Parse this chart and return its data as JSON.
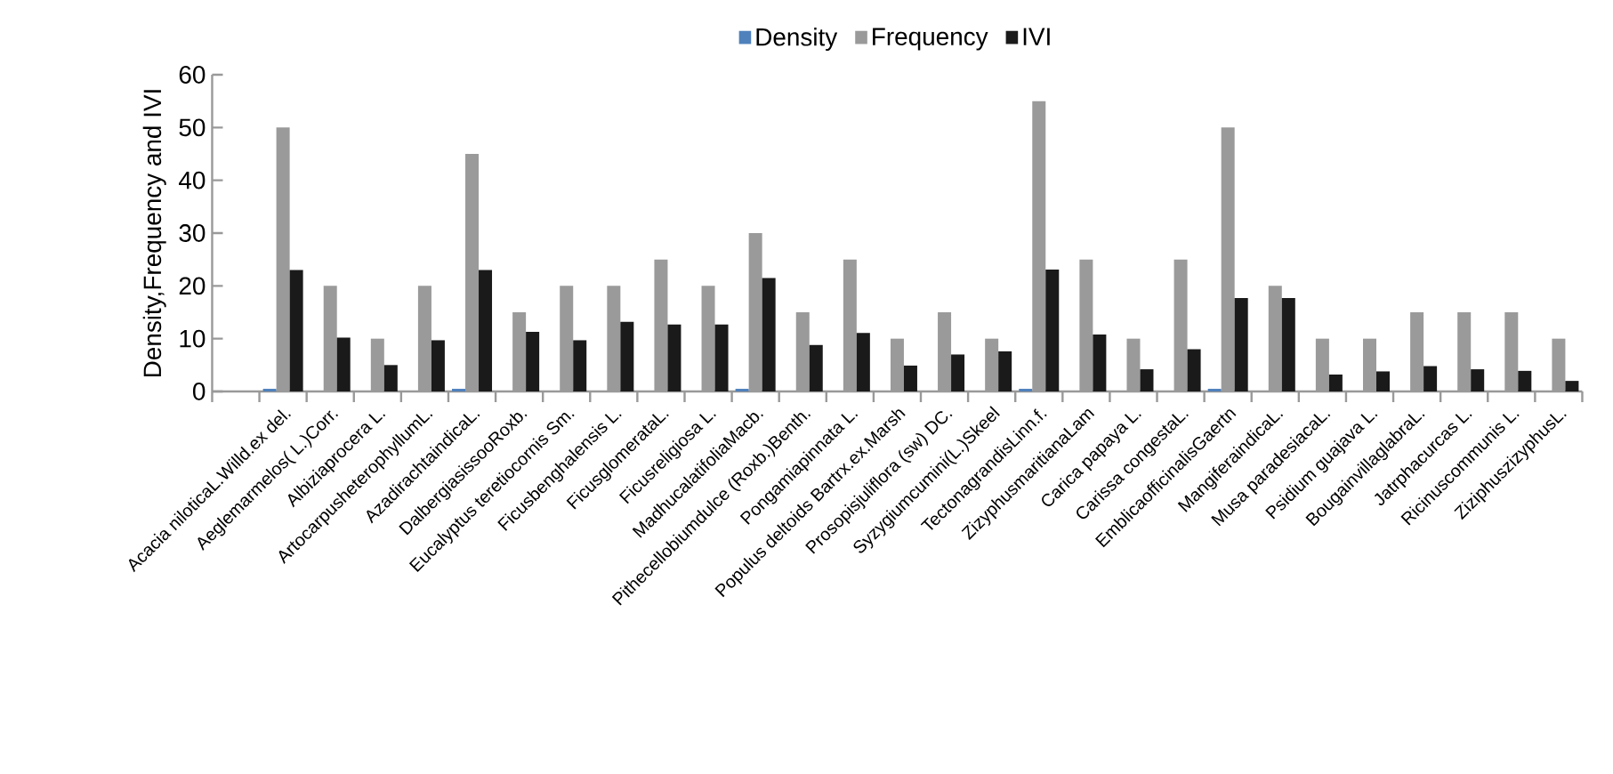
{
  "chart_data": {
    "type": "bar",
    "ylabel": "Density,Frequency and IVI",
    "categories": [
      null,
      "Acacia niloticaL.Willd.ex del.",
      "Aeglemarmelos( L.)Corr.",
      "Albiziaprocera L.",
      "ArtocarpusheterophyllumL.",
      "AzadirachtaindicaL.",
      "DalbergiasissooRoxb.",
      "Eucalyptus teretiocornis Sm.",
      "Ficusbenghalensis L.",
      "FicusglomerataL.",
      "Ficusreligiosa L.",
      "MadhucalatifoliaMacb.",
      "Pithecellobiumdulce (Roxb.)Benth.",
      "Pongamiapinnata L.",
      "Populus deltoids Bartrx.ex.Marsh",
      "Prosopisjuliflora (sw) DC.",
      "Syzygiumcumini(L.)Skeel",
      "TectonagrandisLinn.f.",
      "ZizyphusmaritianaLam",
      "Carica papaya L.",
      "Carissa congestaL.",
      "EmblicaofficinalisGaertn",
      "MangiferaindicaL.",
      "Musa paradesiacaL.",
      "Psidium guajava L.",
      "BougainvillaglabraL.",
      "Jatrphacurcas L.",
      "Ricinuscommunis L.",
      "ZiziphuszizyphusL."
    ],
    "series": [
      {
        "name": "Density",
        "color": "#4f81bd",
        "values": [
          null,
          0.5,
          0,
          0,
          0,
          0.5,
          0,
          0,
          0,
          0,
          0,
          0.5,
          0,
          0,
          0,
          0,
          0,
          0.5,
          0,
          0,
          0,
          0.5,
          0,
          0,
          0,
          0,
          0,
          0,
          0
        ]
      },
      {
        "name": "Frequency",
        "color": "#9a9a9a",
        "values": [
          null,
          50,
          20,
          10,
          20,
          45,
          15,
          20,
          20,
          25,
          20,
          30,
          15,
          25,
          10,
          15,
          10,
          55,
          25,
          10,
          25,
          50,
          20,
          10,
          10,
          15,
          15,
          15,
          10
        ]
      },
      {
        "name": "IVI",
        "color": "#1a1a1a",
        "values": [
          null,
          23,
          10.2,
          5,
          9.7,
          23,
          11.3,
          9.7,
          13.2,
          12.7,
          12.7,
          21.5,
          8.8,
          11.1,
          4.9,
          7,
          7.6,
          23.1,
          10.8,
          4.2,
          8,
          17.7,
          17.7,
          3.2,
          3.8,
          4.8,
          4.2,
          3.9,
          2
        ]
      }
    ],
    "ylim": [
      0,
      60
    ],
    "yticks": [
      0,
      10,
      20,
      30,
      40,
      50,
      60
    ],
    "legend": "top",
    "grid": false
  }
}
